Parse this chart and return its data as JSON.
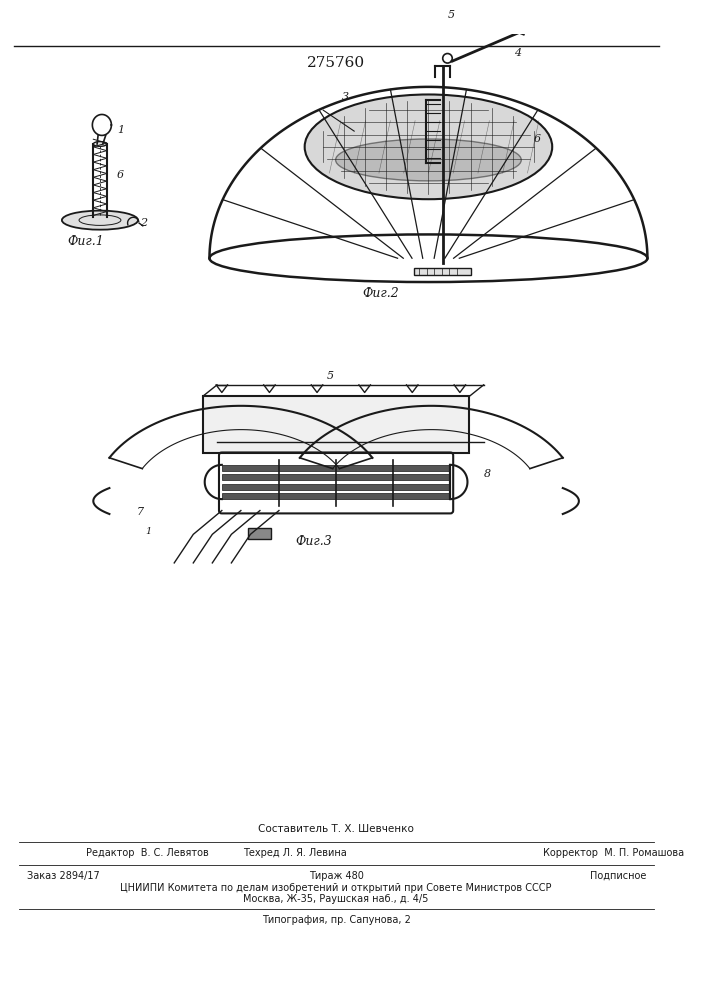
{
  "patent_number": "275760",
  "bg_color": "#ffffff",
  "line_color": "#1a1a1a",
  "fig1_caption": "Фиг.1",
  "fig2_caption": "Фиг.2",
  "fig3_caption": "Фиг.3",
  "footer_composer": "Составитель Т. Х. Шевченко",
  "footer_editor": "Редактор  В. С. Левятов",
  "footer_techred": "Техред Л. Я. Левина",
  "footer_corrector": "Корректор  М. П. Ромашова",
  "footer_order": "Заказ 2894/17",
  "footer_tirazh": "Тираж 480",
  "footer_podpisnoe": "Подписное",
  "footer_tsniipi": "ЦНИИПИ Комитета по делам изобретений и открытий при Совете Министров СССР",
  "footer_moscow": "Москва, Ж-35, Раушская наб., д. 4/5",
  "footer_tipografia": "Типография, пр. Сапунова, 2"
}
